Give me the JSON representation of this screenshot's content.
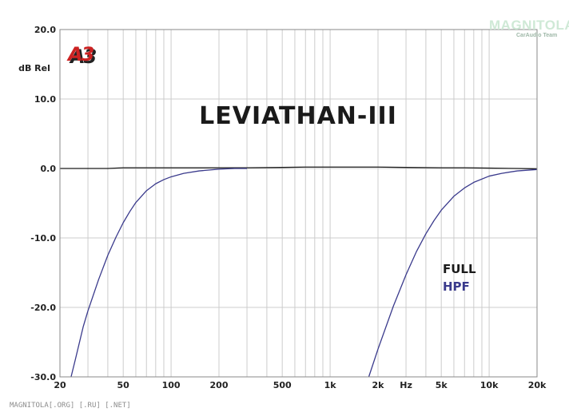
{
  "chart_data": {
    "type": "line",
    "title": "LEVIATHAN-III",
    "ylabel": "dB Rel",
    "xlabel": "Hz",
    "x_scale": "log",
    "xlim": [
      20,
      20000
    ],
    "ylim": [
      -30,
      20
    ],
    "grid": true,
    "y_ticks": [
      20,
      10,
      0,
      -10,
      -20,
      -30
    ],
    "y_tick_labels": [
      "20.0",
      "10.0",
      "0.0",
      "-10.0",
      "-20.0",
      "-30.0"
    ],
    "x_ticks": [
      20,
      50,
      100,
      200,
      500,
      1000,
      2000,
      5000,
      10000,
      20000
    ],
    "x_tick_labels": [
      "20",
      "50",
      "100",
      "200",
      "500",
      "1k",
      "2k",
      "5k",
      "10k",
      "20k"
    ],
    "x_unit_label": "Hz",
    "x_unit_position": 3000,
    "legend_position": "right",
    "series": [
      {
        "name": "FULL",
        "color": "#1a1a1a",
        "x": [
          20,
          25,
          30,
          40,
          50,
          70,
          100,
          150,
          200,
          300,
          500,
          700,
          1000,
          2000,
          3000,
          5000,
          7000,
          10000,
          15000,
          20000
        ],
        "y": [
          0.0,
          0.0,
          0.0,
          0.0,
          0.1,
          0.1,
          0.1,
          0.1,
          0.1,
          0.1,
          0.15,
          0.2,
          0.2,
          0.2,
          0.15,
          0.1,
          0.1,
          0.05,
          0.0,
          -0.05
        ]
      },
      {
        "name": "HPF",
        "color": "#3a3a8c",
        "segments": [
          {
            "x": [
              23.5,
              25,
              28,
              30,
              35,
              40,
              45,
              50,
              55,
              60,
              70,
              80,
              90,
              100,
              120,
              150,
              200,
              250,
              300
            ],
            "y": [
              -30,
              -27.5,
              -22.8,
              -20.5,
              -16.0,
              -12.5,
              -9.9,
              -7.8,
              -6.2,
              -4.9,
              -3.2,
              -2.2,
              -1.6,
              -1.2,
              -0.7,
              -0.35,
              -0.1,
              0.0,
              0.0
            ]
          },
          {
            "x": [
              1750,
              2000,
              2500,
              3000,
              3500,
              4000,
              4500,
              5000,
              6000,
              7000,
              8000,
              10000,
              12000,
              15000,
              20000
            ],
            "y": [
              -30,
              -26.0,
              -19.8,
              -15.3,
              -11.9,
              -9.4,
              -7.5,
              -6.0,
              -4.0,
              -2.8,
              -2.0,
              -1.1,
              -0.7,
              -0.35,
              -0.15
            ]
          }
        ]
      }
    ]
  },
  "badge": {
    "text": "A3",
    "fill": "#cc2222",
    "shadow": "#222222"
  },
  "watermark": {
    "main": "MAGNITOLA",
    "sub": "CarAudio Team"
  },
  "footer": {
    "text": "MAGNITOLA[.ORG] [.RU] [.NET]"
  }
}
